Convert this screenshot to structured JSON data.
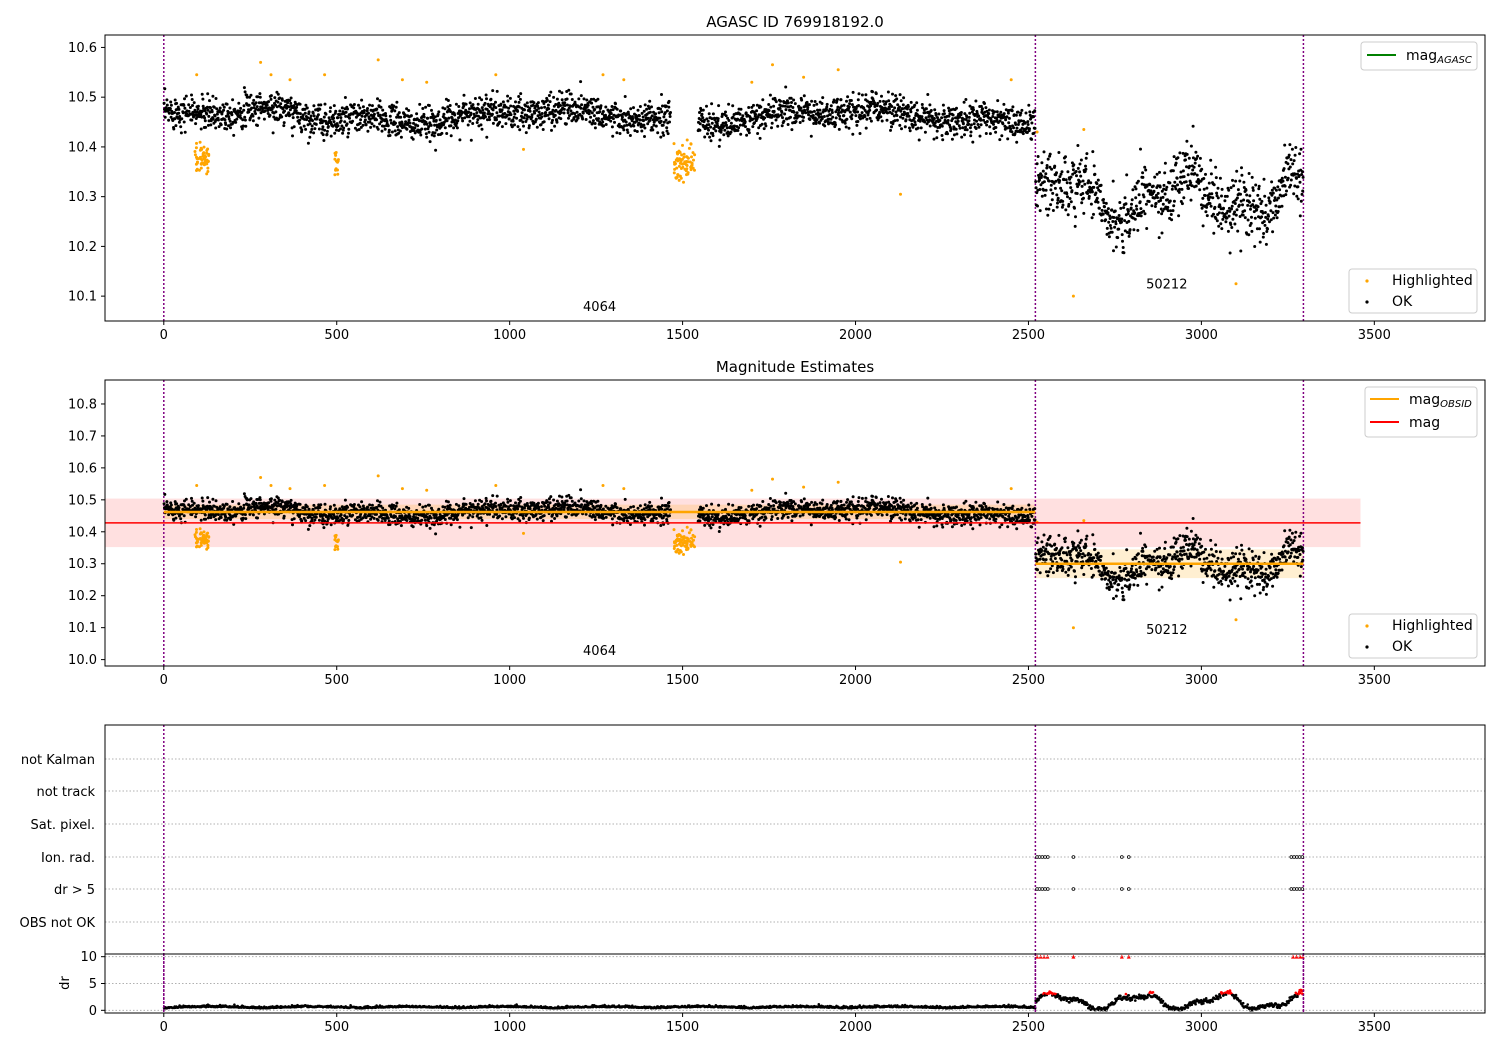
{
  "chart_data": [
    {
      "type": "scatter",
      "title": "AGASC ID 769918192.0",
      "xlim": [
        -170,
        3820
      ],
      "ylim": [
        10.05,
        10.625
      ],
      "xticks": [
        0,
        500,
        1000,
        1500,
        2000,
        2500,
        3000,
        3500
      ],
      "yticks": [
        10.1,
        10.2,
        10.3,
        10.4,
        10.5,
        10.6
      ],
      "vlines": [
        0,
        2520,
        3295
      ],
      "legend": {
        "position": "top-right",
        "lines": [
          {
            "label": "mag",
            "subscript": "AGASC",
            "color": "#008000"
          }
        ]
      },
      "legend2": {
        "position": "bottom-right",
        "points": [
          {
            "label": "Highlighted",
            "color": "#ffa500"
          },
          {
            "label": "OK",
            "color": "#000000"
          }
        ]
      },
      "annotations": [
        {
          "text": "4064",
          "x": 1260,
          "y": 10.07
        },
        {
          "text": "50212",
          "x": 2900,
          "y": 10.115
        }
      ],
      "segments": [
        {
          "x_start": 0,
          "x_end": 2520,
          "baseline": 10.462,
          "spread": 0.022
        },
        {
          "x_start": 2520,
          "x_end": 3295,
          "baseline": 10.3,
          "spread": 0.04
        }
      ],
      "highlighted_clusters": [
        {
          "x_center": 110,
          "x_width": 40,
          "y_center": 10.375,
          "spread": 0.015
        },
        {
          "x_center": 500,
          "x_width": 12,
          "y_center": 10.37,
          "spread": 0.012
        },
        {
          "x_center": 1505,
          "x_width": 60,
          "y_center": 10.37,
          "spread": 0.018
        }
      ],
      "highlighted_points": [
        [
          95,
          10.545
        ],
        [
          280,
          10.57
        ],
        [
          310,
          10.545
        ],
        [
          365,
          10.535
        ],
        [
          465,
          10.545
        ],
        [
          620,
          10.575
        ],
        [
          690,
          10.535
        ],
        [
          760,
          10.53
        ],
        [
          960,
          10.545
        ],
        [
          1040,
          10.395
        ],
        [
          1270,
          10.545
        ],
        [
          1330,
          10.535
        ],
        [
          1700,
          10.53
        ],
        [
          1760,
          10.565
        ],
        [
          1850,
          10.54
        ],
        [
          1950,
          10.555
        ],
        [
          2130,
          10.305
        ],
        [
          2450,
          10.535
        ],
        [
          2525,
          10.43
        ],
        [
          2630,
          10.1
        ],
        [
          2660,
          10.435
        ],
        [
          3100,
          10.125
        ]
      ]
    },
    {
      "type": "scatter",
      "title": "Magnitude Estimates",
      "xlim": [
        -170,
        3820
      ],
      "ylim": [
        9.98,
        10.875
      ],
      "xticks": [
        0,
        500,
        1000,
        1500,
        2000,
        2500,
        3000,
        3500
      ],
      "yticks": [
        10.0,
        10.1,
        10.2,
        10.3,
        10.4,
        10.5,
        10.6,
        10.7,
        10.8
      ],
      "vlines": [
        0,
        2520,
        3295
      ],
      "mag": {
        "value": 10.428,
        "band": [
          10.352,
          10.504
        ],
        "x_range": [
          -170,
          3460
        ],
        "color": "#ff0000"
      },
      "mag_obsid": [
        {
          "x_range": [
            0,
            2520
          ],
          "value": 10.462,
          "band": [
            10.44,
            10.485
          ]
        },
        {
          "x_range": [
            2520,
            3295
          ],
          "value": 10.3,
          "band": [
            10.255,
            10.345
          ]
        }
      ],
      "legend": {
        "position": "top-right",
        "lines": [
          {
            "label": "mag",
            "subscript": "OBSID",
            "color": "#ffa500"
          },
          {
            "label": "mag",
            "subscript": "",
            "color": "#ff0000"
          }
        ]
      },
      "legend2": {
        "position": "bottom-right",
        "points": [
          {
            "label": "Highlighted",
            "color": "#ffa500"
          },
          {
            "label": "OK",
            "color": "#000000"
          }
        ]
      },
      "annotations": [
        {
          "text": "4064",
          "x": 1260,
          "y": 10.015
        },
        {
          "text": "50212",
          "x": 2900,
          "y": 10.08
        }
      ]
    },
    {
      "type": "scatter",
      "title": "",
      "xlim": [
        -170,
        3820
      ],
      "xticks": [
        0,
        500,
        1000,
        1500,
        2000,
        2500,
        3000,
        3500
      ],
      "vlines": [
        0,
        2520,
        3295
      ],
      "flag_rows": [
        "not Kalman",
        "not track",
        "Sat. pixel.",
        "Ion. rad.",
        "dr > 5",
        "OBS not OK"
      ],
      "flag_points": [
        {
          "row": "Ion. rad.",
          "x": [
            2525,
            2532,
            2540,
            2548,
            2556,
            2630,
            2770,
            2790,
            3260,
            3268,
            3276,
            3284,
            3292
          ]
        },
        {
          "row": "dr > 5",
          "x": [
            2525,
            2532,
            2540,
            2548,
            2556,
            2630,
            2770,
            2790,
            3260,
            3268,
            3276,
            3284,
            3292
          ]
        }
      ],
      "dr_panel": {
        "ylabel": "dr",
        "ylim": [
          -0.5,
          10.5
        ],
        "yticks": [
          0,
          5,
          10
        ],
        "red_clip_points_x": [
          2525,
          2535,
          2545,
          2555,
          2630,
          2770,
          2790,
          3265,
          3275,
          3285,
          3293
        ]
      }
    }
  ]
}
